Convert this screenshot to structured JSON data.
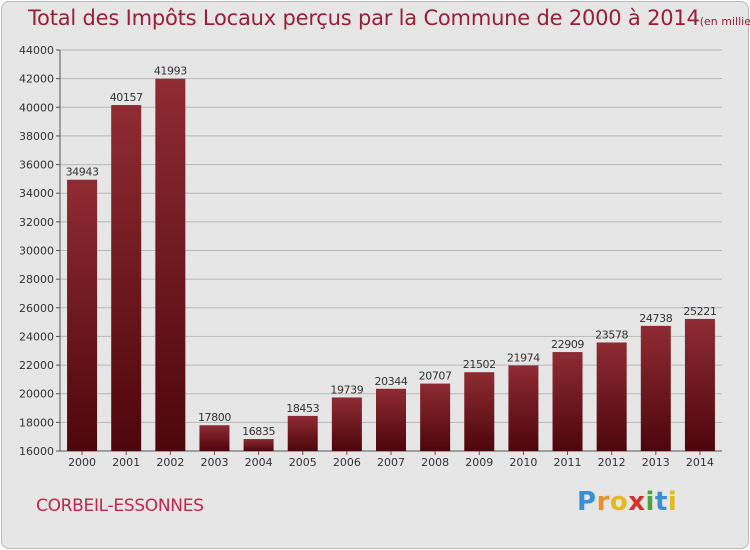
{
  "chart_data": {
    "type": "bar",
    "title": "Total des Impôts Locaux perçus par la Commune de 2000 à 2014",
    "unit": "(en milliers d'€)",
    "categories": [
      "2000",
      "2001",
      "2002",
      "2003",
      "2004",
      "2005",
      "2006",
      "2007",
      "2008",
      "2009",
      "2010",
      "2011",
      "2012",
      "2013",
      "2014"
    ],
    "values": [
      34943,
      40157,
      41993,
      17800,
      16835,
      18453,
      19739,
      20344,
      20707,
      21502,
      21974,
      22909,
      23578,
      24738,
      25221
    ],
    "ylim": [
      16000,
      44000
    ],
    "yticks": [
      16000,
      18000,
      20000,
      22000,
      24000,
      26000,
      28000,
      30000,
      32000,
      34000,
      36000,
      38000,
      40000,
      42000,
      44000
    ],
    "grid": true,
    "bar_color": "#7a1c24"
  },
  "footer": {
    "commune": "CORBEIL-ESSONNES",
    "logo_letters": [
      {
        "ch": "P",
        "color": "#3a8fd0"
      },
      {
        "ch": "r",
        "color": "#e8902a"
      },
      {
        "ch": "o",
        "color": "#e6b821"
      },
      {
        "ch": "x",
        "color": "#d8302b"
      },
      {
        "ch": "i",
        "color": "#4aa63c"
      },
      {
        "ch": "t",
        "color": "#3a8fd0"
      },
      {
        "ch": "i",
        "color": "#e6b821"
      }
    ]
  }
}
